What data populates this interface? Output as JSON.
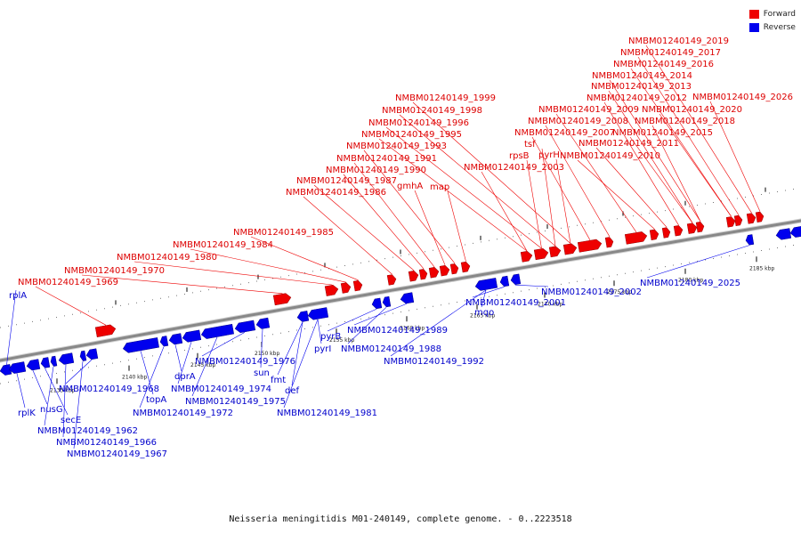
{
  "legend": {
    "forward_label": "Forward",
    "reverse_label": "Reverse",
    "forward_color": "#ee0000",
    "reverse_color": "#0000ee"
  },
  "caption": "Neisseria meningitidis M01-240149, complete genome. - 0..2223518",
  "colors": {
    "backbone": "#888888",
    "forward": "#ee0000",
    "reverse": "#0000ee"
  },
  "ticks": [
    "2135 kbp",
    "2140 kbp",
    "2145 kbp",
    "2150 kbp",
    "2155 kbp",
    "2160 kbp",
    "2165 kbp",
    "2170 kbp",
    "2175 kbp",
    "2180 kbp",
    "2185 kbp"
  ],
  "forward_labels": [
    "NMBM01240149_1969",
    "NMBM01240149_1970",
    "NMBM01240149_1980",
    "NMBM01240149_1984",
    "NMBM01240149_1985",
    "NMBM01240149_1986",
    "NMBM01240149_1987",
    "NMBM01240149_1990",
    "NMBM01240149_1991",
    "gmhA",
    "NMBM01240149_1993",
    "map",
    "NMBM01240149_1995",
    "NMBM01240149_1996",
    "NMBM01240149_1998",
    "NMBM01240149_1999",
    "NMBM01240149_2003",
    "rpsB",
    "tsf",
    "pyrH",
    "NMBM01240149_2007",
    "NMBM01240149_2008",
    "NMBM01240149_2009",
    "NMBM01240149_2010",
    "NMBM01240149_2011",
    "NMBM01240149_2012",
    "NMBM01240149_2013",
    "NMBM01240149_2014",
    "NMBM01240149_2016",
    "NMBM01240149_2017",
    "NMBM01240149_2019",
    "NMBM01240149_2015",
    "NMBM01240149_2018",
    "NMBM01240149_2020",
    "NMBM01240149_2026"
  ],
  "reverse_labels": [
    "rplA",
    "rplK",
    "nusG",
    "secE",
    "NMBM01240149_1962",
    "NMBM01240149_1966",
    "NMBM01240149_1967",
    "NMBM01240149_1968",
    "topA",
    "NMBM01240149_1972",
    "dprA",
    "NMBM01240149_1974",
    "NMBM01240149_1975",
    "NMBM01240149_1976",
    "sun",
    "fmt",
    "def",
    "NMBM01240149_1981",
    "pyrI",
    "pyrB",
    "NMBM01240149_1988",
    "NMBM01240149_1989",
    "NMBM01240149_1992",
    "mqo",
    "NMBM01240149_2001",
    "NMBM01240149_2002",
    "NMBM01240149_2025"
  ]
}
